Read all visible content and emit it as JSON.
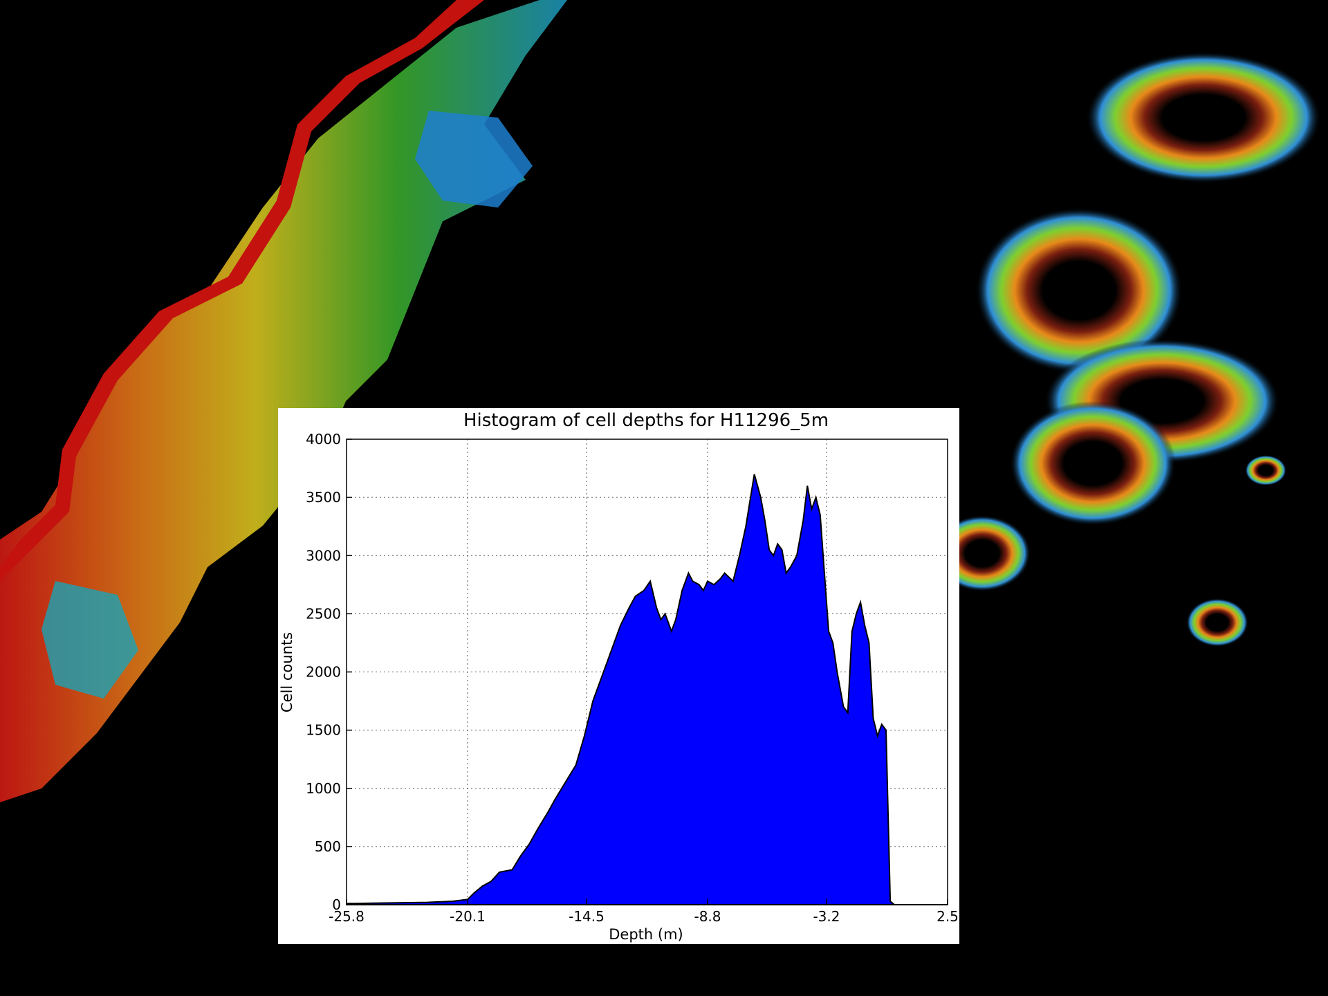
{
  "chart_data": {
    "type": "area",
    "title": "Histogram of cell depths for H11296_5m",
    "xlabel": "Depth (m)",
    "ylabel": "Cell counts",
    "xlim": [
      -25.8,
      2.5
    ],
    "ylim": [
      0,
      4000
    ],
    "x_ticks": [
      "-25.8",
      "-20.1",
      "-14.5",
      "-8.8",
      "-3.2",
      "2.5"
    ],
    "y_ticks": [
      "0",
      "500",
      "1000",
      "1500",
      "2000",
      "2500",
      "3000",
      "3500",
      "4000"
    ],
    "grid": true,
    "fill_color": "#0000ff",
    "series": [
      {
        "x": [
          -25.8,
          -24.0,
          -22.0,
          -20.8,
          -20.1,
          -19.8,
          -19.4,
          -19.0,
          -18.6,
          -18.0,
          -17.6,
          -17.2,
          -16.8,
          -16.3,
          -16.0,
          -15.5,
          -15.0,
          -14.6,
          -14.2,
          -13.8,
          -13.5,
          -13.2,
          -12.9,
          -12.5,
          -12.2,
          -11.8,
          -11.5,
          -11.2,
          -11.0,
          -10.8,
          -10.5,
          -10.3,
          -10.0,
          -9.7,
          -9.5,
          -9.2,
          -9.0,
          -8.8,
          -8.5,
          -8.2,
          -8.0,
          -7.6,
          -7.3,
          -7.0,
          -6.6,
          -6.3,
          -6.1,
          -5.9,
          -5.7,
          -5.5,
          -5.3,
          -5.1,
          -4.9,
          -4.6,
          -4.3,
          -4.1,
          -3.9,
          -3.7,
          -3.5,
          -3.3,
          -3.1,
          -2.9,
          -2.7,
          -2.4,
          -2.2,
          -2.0,
          -1.8,
          -1.6,
          -1.4,
          -1.2,
          -1.0,
          -0.8,
          -0.6,
          -0.4,
          -0.2,
          0.0,
          0.3,
          0.6,
          0.9,
          1.2,
          1.5,
          1.8,
          2.1,
          2.3,
          2.45,
          2.5
        ],
        "y": [
          10,
          15,
          20,
          30,
          45,
          100,
          160,
          200,
          280,
          300,
          420,
          520,
          650,
          800,
          900,
          1050,
          1200,
          1450,
          1750,
          1950,
          2100,
          2250,
          2400,
          2550,
          2650,
          2700,
          2780,
          2550,
          2450,
          2500,
          2350,
          2450,
          2700,
          2850,
          2780,
          2750,
          2700,
          2780,
          2750,
          2800,
          2850,
          2780,
          3000,
          3250,
          3700,
          3500,
          3300,
          3050,
          3000,
          3100,
          3050,
          2850,
          2900,
          3000,
          3300,
          3600,
          3400,
          3500,
          3350,
          2850,
          2350,
          2250,
          2000,
          1700,
          1650,
          2350,
          2500,
          2600,
          2400,
          2250,
          1600,
          1450,
          1550,
          1500,
          30,
          0,
          0,
          0,
          0,
          0,
          0,
          0,
          0,
          0,
          0,
          0
        ]
      }
    ]
  }
}
